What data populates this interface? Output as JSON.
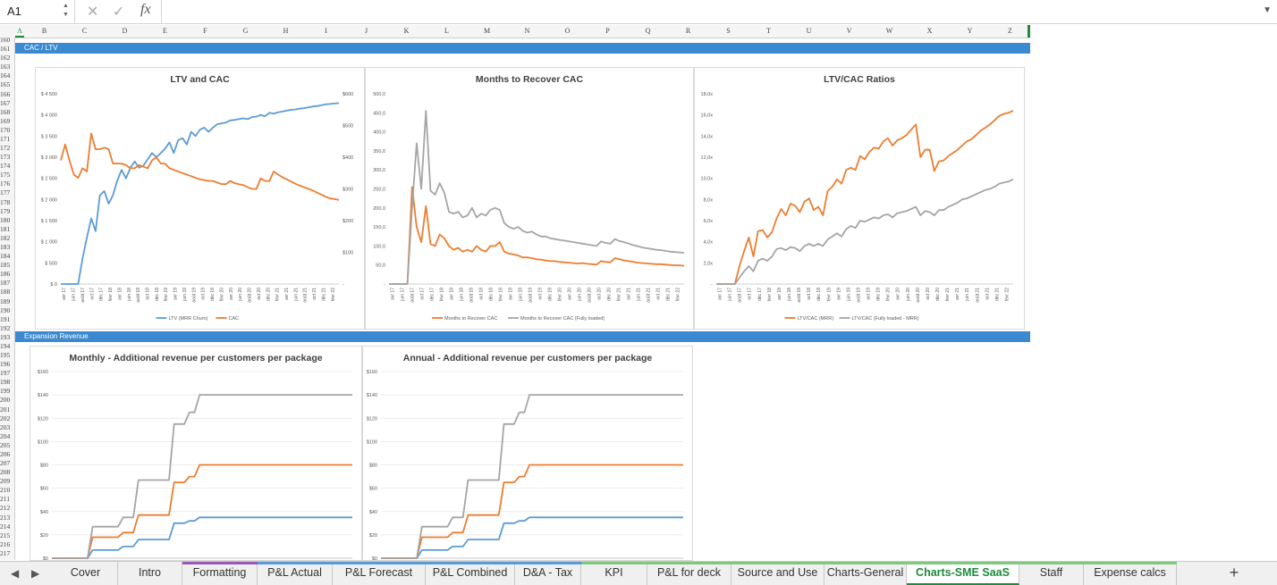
{
  "formula_bar": {
    "cell_ref": "A1",
    "cancel_icon": "✕",
    "enter_icon": "✓",
    "fx_label": "fx",
    "content": ""
  },
  "columns": [
    "A",
    "B",
    "C",
    "D",
    "E",
    "F",
    "G",
    "H",
    "I",
    "J",
    "K",
    "L",
    "M",
    "N",
    "O",
    "P",
    "Q",
    "R",
    "S",
    "T",
    "U",
    "V",
    "W",
    "X",
    "Y",
    "Z"
  ],
  "rows": [
    "160",
    "161",
    "162",
    "163",
    "164",
    "165",
    "166",
    "167",
    "168",
    "169",
    "170",
    "171",
    "172",
    "173",
    "174",
    "175",
    "176",
    "177",
    "178",
    "179",
    "180",
    "181",
    "182",
    "183",
    "184",
    "185",
    "186",
    "187",
    "188",
    "189",
    "190",
    "191",
    "192",
    "193",
    "194",
    "195",
    "196",
    "197",
    "198",
    "199",
    "200",
    "201",
    "202",
    "203",
    "204",
    "205",
    "206",
    "207",
    "208",
    "209",
    "210",
    "211",
    "212",
    "213",
    "214",
    "215",
    "216",
    "217"
  ],
  "sections": {
    "cac_ltv": "CAC / LTV",
    "expansion": "Expansion Revenue"
  },
  "months": [
    "avr 17",
    "juin 17",
    "août 17",
    "oct 17",
    "déc 17",
    "févr 18",
    "avr 18",
    "juin 18",
    "août 18",
    "oct 18",
    "déc 18",
    "févr 19",
    "avr 19",
    "juin 19",
    "août 19",
    "oct 19",
    "déc 19",
    "févr 20",
    "avr 20",
    "juin 20",
    "août 20",
    "oct 20",
    "déc 20",
    "févr 21",
    "avr 21",
    "juin 21",
    "août 21",
    "oct 21",
    "déc 21",
    "févr 22"
  ],
  "colors": {
    "blue": "#5b9bd5",
    "orange": "#ed7d31",
    "gray": "#a5a5a5",
    "band": "#3b8ad1",
    "active_tab": "#1e8a3c"
  },
  "chart_data": [
    {
      "type": "line",
      "title": "LTV and CAC",
      "y_left_ticks": [
        "$ 4 500",
        "$ 4 000",
        "$ 3 500",
        "$ 3 000",
        "$ 2 500",
        "$ 2 000",
        "$ 1 500",
        "$ 1 000",
        "$ 500",
        "$ 0"
      ],
      "y_right_ticks": [
        "$600",
        "$500",
        "$400",
        "$300",
        "$200",
        "$100",
        "-"
      ],
      "ylim_left": [
        0,
        4500
      ],
      "ylim_right": [
        0,
        600
      ],
      "series": [
        {
          "name": "LTV (MRR Churn)",
          "color": "blue",
          "axis": "left",
          "values": [
            0,
            0,
            0,
            0,
            0,
            600,
            1100,
            1550,
            1250,
            2100,
            2200,
            1900,
            2100,
            2450,
            2700,
            2500,
            2750,
            2900,
            2750,
            2800,
            2950,
            3100,
            3000,
            3100,
            3200,
            3350,
            3100,
            3400,
            3450,
            3300,
            3600,
            3500,
            3650,
            3700,
            3600,
            3700,
            3780,
            3800,
            3820,
            3870,
            3880,
            3900,
            3920,
            3900,
            3950,
            3960,
            4000,
            3970,
            4050,
            4030,
            4060,
            4080,
            4100,
            4120,
            4130,
            4150,
            4160,
            4180,
            4200,
            4210,
            4230,
            4250,
            4260,
            4270,
            4280
          ]
        },
        {
          "name": "CAC",
          "color": "orange",
          "axis": "right",
          "values": [
            390,
            440,
            390,
            345,
            335,
            365,
            355,
            475,
            425,
            425,
            430,
            425,
            380,
            380,
            380,
            375,
            365,
            365,
            375,
            370,
            365,
            390,
            400,
            380,
            380,
            365,
            360,
            355,
            350,
            345,
            340,
            335,
            330,
            328,
            325,
            325,
            320,
            315,
            315,
            325,
            318,
            315,
            312,
            305,
            300,
            300,
            333,
            325,
            325,
            355,
            345,
            337,
            330,
            323,
            316,
            310,
            305,
            300,
            295,
            288,
            282,
            275,
            270,
            268,
            265
          ]
        }
      ],
      "legend": "bottom"
    },
    {
      "type": "line",
      "title": "Months to Recover CAC",
      "y_ticks": [
        "500,0",
        "450,0",
        "400,0",
        "350,0",
        "300,0",
        "250,0",
        "200,0",
        "150,0",
        "100,0",
        "50,0",
        "-"
      ],
      "ylim": [
        0,
        500
      ],
      "series": [
        {
          "name": "Months to Recover CAC",
          "color": "orange",
          "values": [
            0,
            0,
            0,
            0,
            0,
            255,
            150,
            110,
            205,
            105,
            100,
            130,
            120,
            100,
            90,
            95,
            85,
            90,
            85,
            100,
            90,
            85,
            100,
            100,
            110,
            85,
            80,
            78,
            75,
            70,
            70,
            68,
            65,
            64,
            62,
            60,
            60,
            58,
            57,
            56,
            55,
            54,
            55,
            53,
            52,
            51,
            60,
            58,
            57,
            68,
            65,
            62,
            60,
            58,
            56,
            55,
            54,
            53,
            52,
            52,
            51,
            50,
            49,
            49,
            48
          ]
        },
        {
          "name": "Months to Recover CAC  (Fully loaded)",
          "color": "gray",
          "values": [
            0,
            0,
            0,
            0,
            0,
            200,
            370,
            250,
            455,
            245,
            235,
            265,
            240,
            190,
            185,
            190,
            175,
            180,
            200,
            175,
            185,
            180,
            195,
            200,
            195,
            160,
            150,
            145,
            150,
            140,
            135,
            138,
            130,
            125,
            125,
            120,
            118,
            116,
            114,
            112,
            110,
            108,
            106,
            104,
            102,
            100,
            112,
            108,
            106,
            118,
            113,
            110,
            106,
            102,
            99,
            96,
            94,
            92,
            90,
            89,
            87,
            85,
            84,
            83,
            82
          ]
        }
      ],
      "legend": "bottom"
    },
    {
      "type": "line",
      "title": "LTV/CAC Ratios",
      "y_ticks": [
        "18,0x",
        "16,0x",
        "14,0x",
        "12,0x",
        "10,0x",
        "8,0x",
        "6,0x",
        "4,0x",
        "2,0x",
        "-"
      ],
      "ylim": [
        0,
        18
      ],
      "series": [
        {
          "name": "LTV/CAC (MRR)",
          "color": "orange",
          "values": [
            0,
            0,
            0,
            0,
            0,
            1.7,
            3.1,
            4.4,
            2.6,
            5.0,
            5.1,
            4.4,
            4.9,
            6.2,
            7.1,
            6.5,
            7.6,
            7.4,
            6.8,
            7.8,
            8.1,
            7.0,
            7.3,
            6.5,
            8.8,
            9.2,
            9.9,
            9.5,
            10.8,
            11.0,
            10.8,
            12.1,
            11.8,
            12.5,
            12.9,
            12.8,
            13.5,
            13.8,
            13.1,
            13.6,
            13.8,
            14.1,
            14.6,
            15.1,
            12.0,
            12.7,
            12.7,
            10.7,
            11.6,
            11.7,
            12.1,
            12.4,
            12.7,
            13.1,
            13.5,
            13.7,
            14.1,
            14.5,
            14.8,
            15.1,
            15.5,
            15.9,
            16.1,
            16.2,
            16.4
          ]
        },
        {
          "name": "LTV/CAC (Fully loaded - MRR)",
          "color": "gray",
          "values": [
            0,
            0,
            0,
            0,
            0,
            0.6,
            1.2,
            1.7,
            1.2,
            2.2,
            2.4,
            2.2,
            2.6,
            3.3,
            3.4,
            3.2,
            3.5,
            3.4,
            3.1,
            3.6,
            3.8,
            3.6,
            3.8,
            3.6,
            4.2,
            4.5,
            4.8,
            4.5,
            5.2,
            5.5,
            5.3,
            6.0,
            5.9,
            6.1,
            6.3,
            6.2,
            6.5,
            6.6,
            6.3,
            6.7,
            6.8,
            6.9,
            7.1,
            7.3,
            6.5,
            6.9,
            6.8,
            6.5,
            7.0,
            7.0,
            7.3,
            7.5,
            7.7,
            8.0,
            8.1,
            8.3,
            8.5,
            8.7,
            8.9,
            9.0,
            9.2,
            9.5,
            9.6,
            9.7,
            9.9
          ]
        }
      ],
      "legend": "bottom"
    },
    {
      "type": "line",
      "title": "Monthly - Additional revenue per customers per package",
      "y_ticks": [
        "$160",
        "$140",
        "$120",
        "$100",
        "$80",
        "$60",
        "$40",
        "$20",
        "$0"
      ],
      "ylim": [
        0,
        160
      ],
      "x_count": 60,
      "series": [
        {
          "name": "",
          "color": "blue",
          "values": [
            0,
            0,
            0,
            0,
            0,
            0,
            0,
            0,
            7,
            7,
            7,
            7,
            7,
            7,
            10,
            10,
            10,
            16,
            16,
            16,
            16,
            16,
            16,
            16,
            30,
            30,
            30,
            32,
            32,
            35,
            35,
            35,
            35,
            35,
            35,
            35,
            35,
            35,
            35,
            35,
            35,
            35,
            35,
            35,
            35,
            35,
            35,
            35,
            35,
            35,
            35,
            35,
            35,
            35,
            35,
            35,
            35,
            35,
            35,
            35
          ]
        },
        {
          "name": "",
          "color": "orange",
          "values": [
            0,
            0,
            0,
            0,
            0,
            0,
            0,
            0,
            18,
            18,
            18,
            18,
            18,
            18,
            22,
            22,
            22,
            37,
            37,
            37,
            37,
            37,
            37,
            37,
            65,
            65,
            65,
            70,
            70,
            80,
            80,
            80,
            80,
            80,
            80,
            80,
            80,
            80,
            80,
            80,
            80,
            80,
            80,
            80,
            80,
            80,
            80,
            80,
            80,
            80,
            80,
            80,
            80,
            80,
            80,
            80,
            80,
            80,
            80,
            80
          ]
        },
        {
          "name": "",
          "color": "gray",
          "values": [
            0,
            0,
            0,
            0,
            0,
            0,
            0,
            0,
            27,
            27,
            27,
            27,
            27,
            27,
            35,
            35,
            35,
            67,
            67,
            67,
            67,
            67,
            67,
            67,
            115,
            115,
            115,
            125,
            125,
            140,
            140,
            140,
            140,
            140,
            140,
            140,
            140,
            140,
            140,
            140,
            140,
            140,
            140,
            140,
            140,
            140,
            140,
            140,
            140,
            140,
            140,
            140,
            140,
            140,
            140,
            140,
            140,
            140,
            140,
            140
          ]
        }
      ]
    },
    {
      "type": "line",
      "title": "Annual - Additional revenue per customers per package",
      "y_ticks": [
        "$160",
        "$140",
        "$120",
        "$100",
        "$80",
        "$60",
        "$40",
        "$20",
        "$0"
      ],
      "ylim": [
        0,
        160
      ],
      "x_count": 60,
      "series": [
        {
          "name": "",
          "color": "blue",
          "values": [
            0,
            0,
            0,
            0,
            0,
            0,
            0,
            0,
            7,
            7,
            7,
            7,
            7,
            7,
            10,
            10,
            10,
            16,
            16,
            16,
            16,
            16,
            16,
            16,
            30,
            30,
            30,
            32,
            32,
            35,
            35,
            35,
            35,
            35,
            35,
            35,
            35,
            35,
            35,
            35,
            35,
            35,
            35,
            35,
            35,
            35,
            35,
            35,
            35,
            35,
            35,
            35,
            35,
            35,
            35,
            35,
            35,
            35,
            35,
            35
          ]
        },
        {
          "name": "",
          "color": "orange",
          "values": [
            0,
            0,
            0,
            0,
            0,
            0,
            0,
            0,
            18,
            18,
            18,
            18,
            18,
            18,
            22,
            22,
            22,
            37,
            37,
            37,
            37,
            37,
            37,
            37,
            65,
            65,
            65,
            70,
            70,
            80,
            80,
            80,
            80,
            80,
            80,
            80,
            80,
            80,
            80,
            80,
            80,
            80,
            80,
            80,
            80,
            80,
            80,
            80,
            80,
            80,
            80,
            80,
            80,
            80,
            80,
            80,
            80,
            80,
            80,
            80
          ]
        },
        {
          "name": "",
          "color": "gray",
          "values": [
            0,
            0,
            0,
            0,
            0,
            0,
            0,
            0,
            27,
            27,
            27,
            27,
            27,
            27,
            35,
            35,
            35,
            67,
            67,
            67,
            67,
            67,
            67,
            67,
            115,
            115,
            115,
            125,
            125,
            140,
            140,
            140,
            140,
            140,
            140,
            140,
            140,
            140,
            140,
            140,
            140,
            140,
            140,
            140,
            140,
            140,
            140,
            140,
            140,
            140,
            140,
            140,
            140,
            140,
            140,
            140,
            140,
            140,
            140,
            140
          ]
        }
      ]
    }
  ],
  "tabs": [
    {
      "label": "Cover",
      "strip": ""
    },
    {
      "label": "Intro",
      "strip": ""
    },
    {
      "label": "Formatting",
      "strip": "#9b59b6"
    },
    {
      "label": "P&L Actual",
      "strip": "#5b9bd5"
    },
    {
      "label": "P&L Forecast",
      "strip": "#5b9bd5"
    },
    {
      "label": "P&L Combined",
      "strip": "#5b9bd5"
    },
    {
      "label": "D&A - Tax",
      "strip": "#5b9bd5"
    },
    {
      "label": "KPI",
      "strip": "#7fc97f"
    },
    {
      "label": "P&L for deck",
      "strip": "#7fc97f"
    },
    {
      "label": "Source and Use",
      "strip": "#7fc97f"
    },
    {
      "label": "Charts-General",
      "strip": "#7fc97f"
    },
    {
      "label": "Charts-SME SaaS",
      "strip": "#7fc97f",
      "active": true
    },
    {
      "label": "Staff",
      "strip": "#7fc97f"
    },
    {
      "label": "Expense calcs",
      "strip": "#7fc97f"
    }
  ],
  "add_sheet_label": "+"
}
